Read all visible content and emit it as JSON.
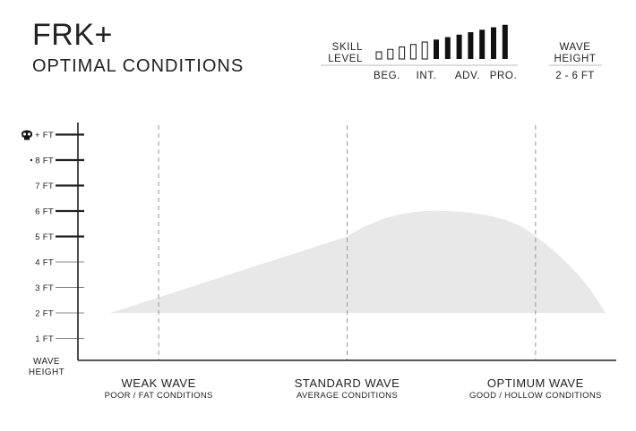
{
  "header": {
    "title": "FRK+",
    "subtitle": "OPTIMAL CONDITIONS"
  },
  "skill": {
    "label_line1": "SKILL",
    "label_line2": "LEVEL",
    "bar_count": 12,
    "filled_from": 5,
    "levels": [
      "BEG.",
      "INT.",
      "ADV.",
      "PRO."
    ]
  },
  "wave_height_box": {
    "label_line1": "WAVE",
    "label_line2": "HEIGHT",
    "value": "2 - 6 FT"
  },
  "chart_data": {
    "type": "area",
    "title": "",
    "ylabel_line1": "WAVE",
    "ylabel_line2": "HEIGHT",
    "y_ticks": [
      {
        "value": 1,
        "label": "1 FT"
      },
      {
        "value": 2,
        "label": "2 FT"
      },
      {
        "value": 3,
        "label": "3 FT"
      },
      {
        "value": 4,
        "label": "4 FT"
      },
      {
        "value": 5,
        "label": "5 FT"
      },
      {
        "value": 6,
        "label": "6 FT"
      },
      {
        "value": 7,
        "label": "7 FT"
      },
      {
        "value": 8,
        "label": "8 FT"
      },
      {
        "value": 9,
        "label": "+ FT",
        "icon": "skull-icon"
      }
    ],
    "ylim": [
      0,
      9
    ],
    "xlim": [
      0,
      1
    ],
    "categories": [
      {
        "x": 0.15,
        "label": "WEAK WAVE",
        "sublabel": "POOR / FAT CONDITIONS"
      },
      {
        "x": 0.5,
        "label": "STANDARD WAVE",
        "sublabel": "AVERAGE CONDITIONS"
      },
      {
        "x": 0.85,
        "label": "OPTIMUM WAVE",
        "sublabel": "GOOD / HOLLOW CONDITIONS"
      }
    ],
    "area_upper": [
      [
        0.06,
        2
      ],
      [
        0.5,
        5
      ],
      [
        0.68,
        6
      ],
      [
        0.85,
        5
      ],
      [
        0.98,
        2
      ]
    ],
    "area_lower": [
      [
        0.06,
        2
      ],
      [
        0.98,
        2
      ]
    ],
    "fill_color": "#e8e8e8",
    "grid": false
  }
}
